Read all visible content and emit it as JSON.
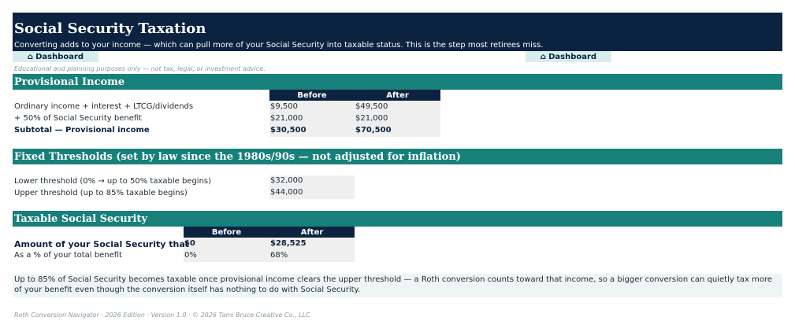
{
  "header": {
    "title": "Social Security Taxation",
    "subtitle": "Converting adds to your income — which can pull more of your Social Security into taxable status. This is the step most retirees miss."
  },
  "nav": {
    "dashboard_icon": "⌂",
    "dashboard_label": "Dashboard",
    "icon_name": "home-icon"
  },
  "disclaimer": "Educational and planning purposes only — not tax, legal, or investment advice.",
  "provisional": {
    "title": "Provisional Income",
    "col_before": "Before",
    "col_after": "After",
    "rows": [
      {
        "label": "Ordinary income + interest + LTCG/dividends",
        "before": "$9,500",
        "after": "$49,500"
      },
      {
        "label": "+ 50% of Social Security benefit",
        "before": "$21,000",
        "after": "$21,000"
      },
      {
        "label": "Subtotal — Provisional income",
        "before": "$30,500",
        "after": "$70,500"
      }
    ]
  },
  "thresholds": {
    "title": "Fixed Thresholds (set by law since the 1980s/90s — not adjusted for inflation)",
    "rows": [
      {
        "label": "Lower threshold (0% → up to 50% taxable begins)",
        "value": "$32,000"
      },
      {
        "label": "Upper threshold (up to 85% taxable begins)",
        "value": "$44,000"
      }
    ]
  },
  "taxable": {
    "title": "Taxable Social Security",
    "col_before": "Before",
    "col_after": "After",
    "rows": [
      {
        "label": "Amount of your Social Security that",
        "before": "$0",
        "after": "$28,525"
      },
      {
        "label": "As a % of your total benefit",
        "before": "0%",
        "after": "68%"
      }
    ]
  },
  "note": "Up to 85% of Social Security becomes taxable once provisional income clears the upper threshold — a Roth conversion counts toward that income, so a bigger conversion can quietly tax more of your benefit even though the conversion itself has nothing to do with Social Security.",
  "footer": "Roth Conversion Navigator · 2026 Edition · Version 1.0 · © 2026 Tami Bruce Creative Co., LLC",
  "colors": {
    "navy": "#0b2340",
    "teal": "#17807a",
    "dashboard_bg": "#d8eeee",
    "note_bg": "#eef6f5"
  }
}
